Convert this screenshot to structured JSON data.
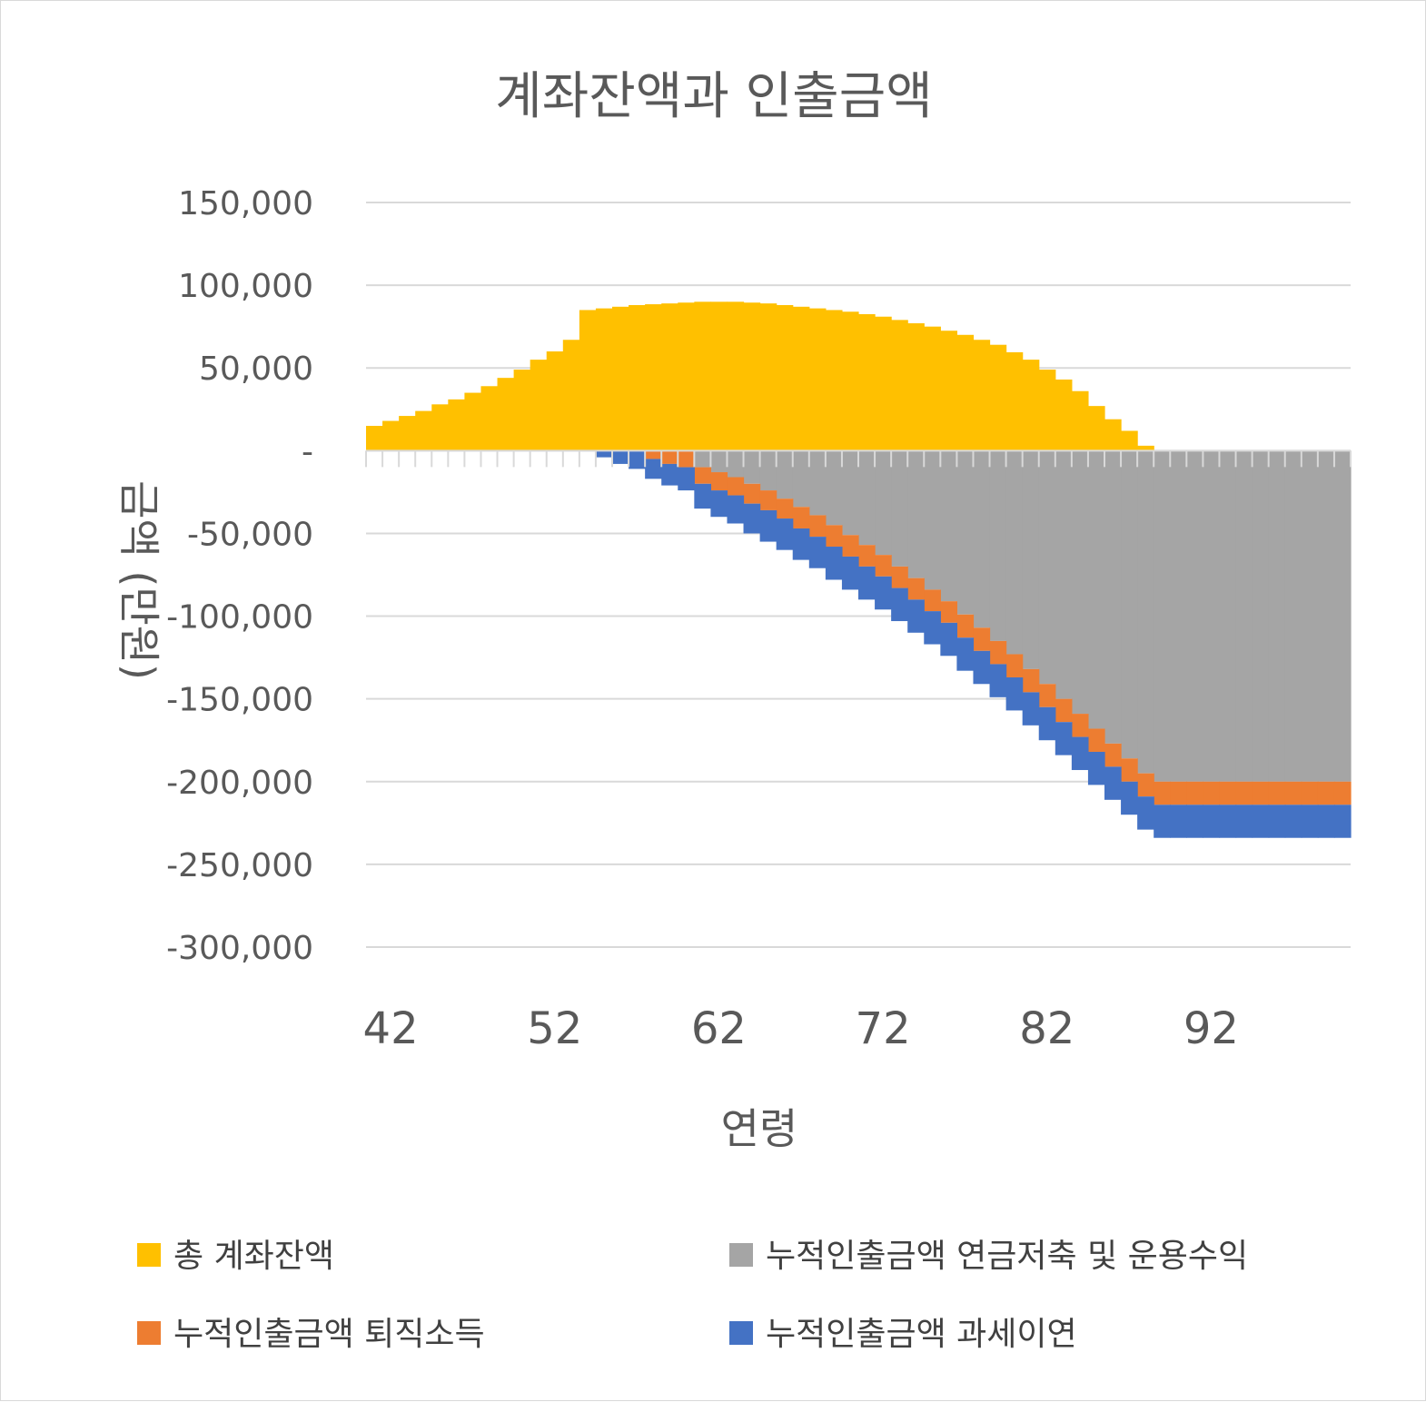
{
  "chart_data": {
    "type": "bar",
    "stacked": true,
    "title": "계좌잔액과 인출금액",
    "xlabel": "연령",
    "ylabel": "금액 (만원)",
    "ylim": [
      -300000,
      150000
    ],
    "grid": true,
    "legend_position": "bottom",
    "y_ticks": [
      {
        "value": 150000,
        "label": "150,000"
      },
      {
        "value": 100000,
        "label": "100,000"
      },
      {
        "value": 50000,
        "label": "50,000"
      },
      {
        "value": 0,
        "label": "-"
      },
      {
        "value": -50000,
        "label": "-50,000"
      },
      {
        "value": -100000,
        "label": "-100,000"
      },
      {
        "value": -150000,
        "label": "-150,000"
      },
      {
        "value": -200000,
        "label": "-200,000"
      },
      {
        "value": -250000,
        "label": "-250,000"
      },
      {
        "value": -300000,
        "label": "-300,000"
      }
    ],
    "x_tick_labels": [
      "42",
      "52",
      "62",
      "72",
      "82",
      "92"
    ],
    "x": [
      41,
      42,
      43,
      44,
      45,
      46,
      47,
      48,
      49,
      50,
      51,
      52,
      53,
      54,
      55,
      56,
      57,
      58,
      59,
      60,
      61,
      62,
      63,
      64,
      65,
      66,
      67,
      68,
      69,
      70,
      71,
      72,
      73,
      74,
      75,
      76,
      77,
      78,
      79,
      80,
      81,
      82,
      83,
      84,
      85,
      86,
      87,
      88,
      89,
      90,
      91,
      92,
      93,
      94,
      95,
      96,
      97,
      98,
      99,
      100
    ],
    "series": [
      {
        "name": "총 계좌잔액",
        "color": "#FFC000",
        "values": [
          15000,
          18000,
          21000,
          24000,
          28000,
          31000,
          35000,
          39000,
          44000,
          49000,
          55000,
          60000,
          67000,
          85000,
          86000,
          87000,
          88000,
          88500,
          89000,
          89500,
          90000,
          90000,
          90000,
          89500,
          89000,
          88000,
          87000,
          86000,
          85000,
          84000,
          82500,
          81000,
          79000,
          77000,
          75000,
          72500,
          70000,
          67000,
          64000,
          59500,
          55000,
          49000,
          43000,
          36000,
          27000,
          19000,
          12000,
          3000,
          0,
          0,
          0,
          0,
          0,
          0,
          0,
          0,
          0,
          0,
          0,
          0
        ]
      },
      {
        "name": "누적인출금액 연금저축 및 운용수익",
        "color": "#A5A5A5",
        "values": [
          0,
          0,
          0,
          0,
          0,
          0,
          0,
          0,
          0,
          0,
          0,
          0,
          0,
          0,
          0,
          0,
          0,
          0,
          0,
          0,
          -10000,
          -13000,
          -16000,
          -20000,
          -24000,
          -29000,
          -34000,
          -39000,
          -45000,
          -51000,
          -57000,
          -63000,
          -70000,
          -77000,
          -84000,
          -91000,
          -99000,
          -107000,
          -115000,
          -123000,
          -132000,
          -141000,
          -150000,
          -159000,
          -168000,
          -177000,
          -186000,
          -195000,
          -200000,
          -200000,
          -200000,
          -200000,
          -200000,
          -200000,
          -200000,
          -200000,
          -200000,
          -200000,
          -200000,
          -200000
        ]
      },
      {
        "name": "누적인출금액 퇴직소득",
        "color": "#ED7D31",
        "values": [
          0,
          0,
          0,
          0,
          0,
          0,
          0,
          0,
          0,
          0,
          0,
          0,
          0,
          0,
          0,
          0,
          0,
          -5000,
          -8000,
          -10000,
          -10000,
          -11000,
          -11000,
          -12000,
          -12000,
          -12000,
          -13000,
          -13000,
          -13000,
          -13000,
          -13000,
          -13000,
          -13000,
          -13000,
          -13000,
          -13000,
          -14000,
          -14000,
          -14000,
          -14000,
          -14000,
          -14000,
          -14000,
          -14000,
          -14000,
          -14000,
          -14000,
          -14000,
          -14000,
          -14000,
          -14000,
          -14000,
          -14000,
          -14000,
          -14000,
          -14000,
          -14000,
          -14000,
          -14000,
          -14000
        ]
      },
      {
        "name": "누적인출금액 과세이연",
        "color": "#4472C4",
        "values": [
          0,
          0,
          0,
          0,
          0,
          0,
          0,
          0,
          0,
          0,
          0,
          0,
          0,
          0,
          -4000,
          -8000,
          -11000,
          -12000,
          -13000,
          -14000,
          -15000,
          -16000,
          -17000,
          -18000,
          -19000,
          -19000,
          -19000,
          -19000,
          -20000,
          -20000,
          -20000,
          -20000,
          -20000,
          -20000,
          -20000,
          -20000,
          -20000,
          -20000,
          -20000,
          -20000,
          -20000,
          -20000,
          -20000,
          -20000,
          -20000,
          -20000,
          -20000,
          -20000,
          -20000,
          -20000,
          -20000,
          -20000,
          -20000,
          -20000,
          -20000,
          -20000,
          -20000,
          -20000,
          -20000,
          -20000
        ]
      }
    ]
  },
  "legend": {
    "items": [
      {
        "label": "총 계좌잔액",
        "color": "#FFC000"
      },
      {
        "label": "누적인출금액 연금저축 및 운용수익",
        "color": "#A5A5A5"
      },
      {
        "label": "누적인출금액 퇴직소득",
        "color": "#ED7D31"
      },
      {
        "label": "누적인출금액 과세이연",
        "color": "#4472C4"
      }
    ]
  }
}
